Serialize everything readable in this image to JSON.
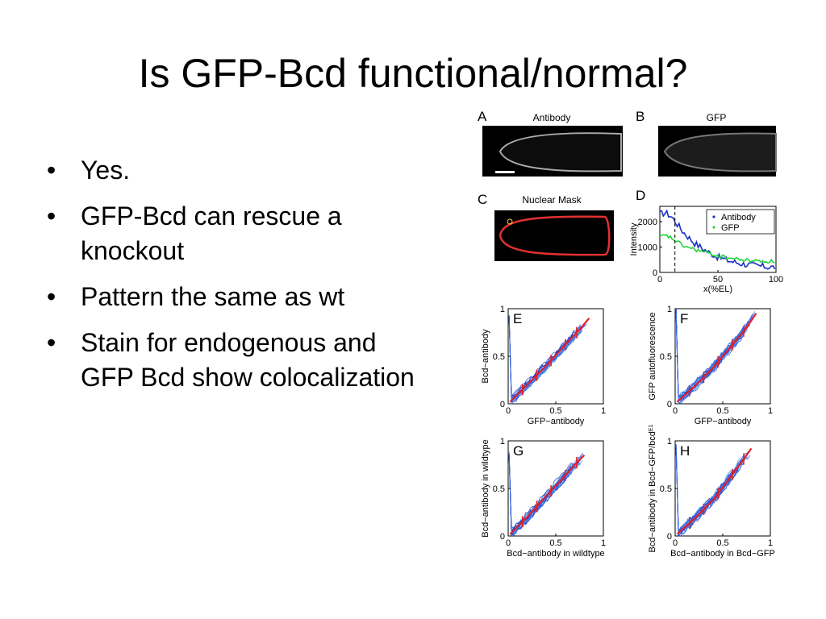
{
  "slide": {
    "title": "Is GFP-Bcd functional/normal?",
    "bullets": [
      "Yes.",
      "GFP-Bcd can rescue a knockout",
      "Pattern the same as wt",
      "Stain for endogenous and GFP Bcd show colocalization"
    ]
  },
  "figure": {
    "panels": {
      "A": {
        "letter": "A",
        "title": "Antibody"
      },
      "B": {
        "letter": "B",
        "title": "GFP"
      },
      "C": {
        "letter": "C",
        "title": "Nuclear Mask"
      },
      "D": {
        "letter": "D"
      },
      "E": {
        "letter": "E"
      },
      "F": {
        "letter": "F"
      },
      "G": {
        "letter": "G"
      },
      "H": {
        "letter": "H"
      }
    }
  },
  "chart_data": [
    {
      "panel": "D",
      "type": "line",
      "xlabel": "x(%EL)",
      "ylabel": "Intensity",
      "xlim": [
        0,
        100
      ],
      "ylim": [
        0,
        2600
      ],
      "xticks": [
        "0",
        "50",
        "100"
      ],
      "yticks": [
        "0",
        "1000",
        "2000"
      ],
      "legend_position": "top-right",
      "series": [
        {
          "name": "Antibody",
          "color": "#1a2fc8",
          "x": [
            0,
            5,
            10,
            15,
            20,
            30,
            40,
            50,
            60,
            70,
            80,
            90,
            100
          ],
          "y": [
            2300,
            2350,
            2200,
            1900,
            1600,
            1150,
            850,
            600,
            450,
            350,
            280,
            230,
            200
          ]
        },
        {
          "name": "GFP",
          "color": "#22d63a",
          "x": [
            0,
            5,
            10,
            15,
            20,
            30,
            40,
            50,
            60,
            70,
            80,
            90,
            100
          ],
          "y": [
            1400,
            1450,
            1350,
            1200,
            1050,
            900,
            780,
            650,
            560,
            500,
            460,
            440,
            430
          ]
        }
      ]
    },
    {
      "panel": "E",
      "type": "scatter",
      "xlabel": "GFP−antibody",
      "ylabel": "Bcd−antibody",
      "xlim": [
        0,
        1
      ],
      "ylim": [
        0,
        1
      ],
      "xticks": [
        "0",
        "0.5",
        "1"
      ],
      "yticks": [
        "0",
        "0.5",
        "1"
      ],
      "series": [
        {
          "x": [
            0.02,
            0.2,
            0.4,
            0.6,
            0.75,
            0.85
          ],
          "y": [
            0.02,
            0.2,
            0.4,
            0.62,
            0.78,
            0.9
          ]
        }
      ]
    },
    {
      "panel": "F",
      "type": "scatter",
      "xlabel": "GFP−antibody",
      "ylabel": "GFP autofluorescence",
      "xlim": [
        0,
        1
      ],
      "ylim": [
        0,
        1
      ],
      "xticks": [
        "0",
        "0.5",
        "1"
      ],
      "yticks": [
        "0",
        "0.5",
        "1"
      ],
      "series": [
        {
          "x": [
            0.02,
            0.2,
            0.4,
            0.6,
            0.75,
            0.85
          ],
          "y": [
            0.02,
            0.18,
            0.38,
            0.62,
            0.8,
            0.95
          ]
        }
      ]
    },
    {
      "panel": "G",
      "type": "scatter",
      "xlabel": "Bcd−antibody in wildtype",
      "ylabel": "Bcd−antibody in wildtype",
      "xlim": [
        0,
        1
      ],
      "ylim": [
        0,
        1
      ],
      "xticks": [
        "0",
        "0.5",
        "1"
      ],
      "yticks": [
        "0",
        "0.5",
        "1"
      ],
      "series": [
        {
          "x": [
            0.02,
            0.2,
            0.4,
            0.55,
            0.7,
            0.8
          ],
          "y": [
            0.02,
            0.2,
            0.42,
            0.58,
            0.75,
            0.85
          ]
        }
      ]
    },
    {
      "panel": "H",
      "type": "scatter",
      "xlabel": "Bcd−antibody in Bcd−GFP",
      "ylabel": "Bcd−antibody in Bcd−GFP/bcd",
      "ylabel_sup": "E1",
      "xlim": [
        0,
        1
      ],
      "ylim": [
        0,
        1
      ],
      "xticks": [
        "0",
        "0.5",
        "1"
      ],
      "yticks": [
        "0",
        "0.5",
        "1"
      ],
      "series": [
        {
          "x": [
            0.02,
            0.2,
            0.4,
            0.55,
            0.7,
            0.8
          ],
          "y": [
            0.02,
            0.18,
            0.38,
            0.58,
            0.78,
            0.92
          ]
        }
      ]
    }
  ]
}
